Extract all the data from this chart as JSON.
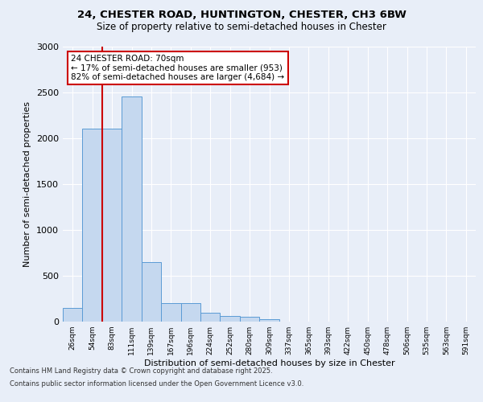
{
  "title_line1": "24, CHESTER ROAD, HUNTINGTON, CHESTER, CH3 6BW",
  "title_line2": "Size of property relative to semi-detached houses in Chester",
  "xlabel": "Distribution of semi-detached houses by size in Chester",
  "ylabel": "Number of semi-detached properties",
  "bin_labels": [
    "26sqm",
    "54sqm",
    "83sqm",
    "111sqm",
    "139sqm",
    "167sqm",
    "196sqm",
    "224sqm",
    "252sqm",
    "280sqm",
    "309sqm",
    "337sqm",
    "365sqm",
    "393sqm",
    "422sqm",
    "450sqm",
    "478sqm",
    "506sqm",
    "535sqm",
    "563sqm",
    "591sqm"
  ],
  "bar_values": [
    150,
    2100,
    2100,
    2450,
    650,
    200,
    200,
    100,
    60,
    50,
    30,
    0,
    0,
    0,
    0,
    0,
    0,
    0,
    0,
    0,
    0
  ],
  "bar_color": "#c5d8ef",
  "bar_edge_color": "#5b9bd5",
  "annotation_text": "24 CHESTER ROAD: 70sqm\n← 17% of semi-detached houses are smaller (953)\n82% of semi-detached houses are larger (4,684) →",
  "annotation_box_color": "white",
  "annotation_box_edge_color": "#cc0000",
  "vline_color": "#cc0000",
  "vline_x": 1.5,
  "ylim": [
    0,
    3000
  ],
  "yticks": [
    0,
    500,
    1000,
    1500,
    2000,
    2500,
    3000
  ],
  "background_color": "#e8eef8",
  "axes_background": "#e8eef8",
  "grid_color": "#ffffff",
  "footer_line1": "Contains HM Land Registry data © Crown copyright and database right 2025.",
  "footer_line2": "Contains public sector information licensed under the Open Government Licence v3.0."
}
